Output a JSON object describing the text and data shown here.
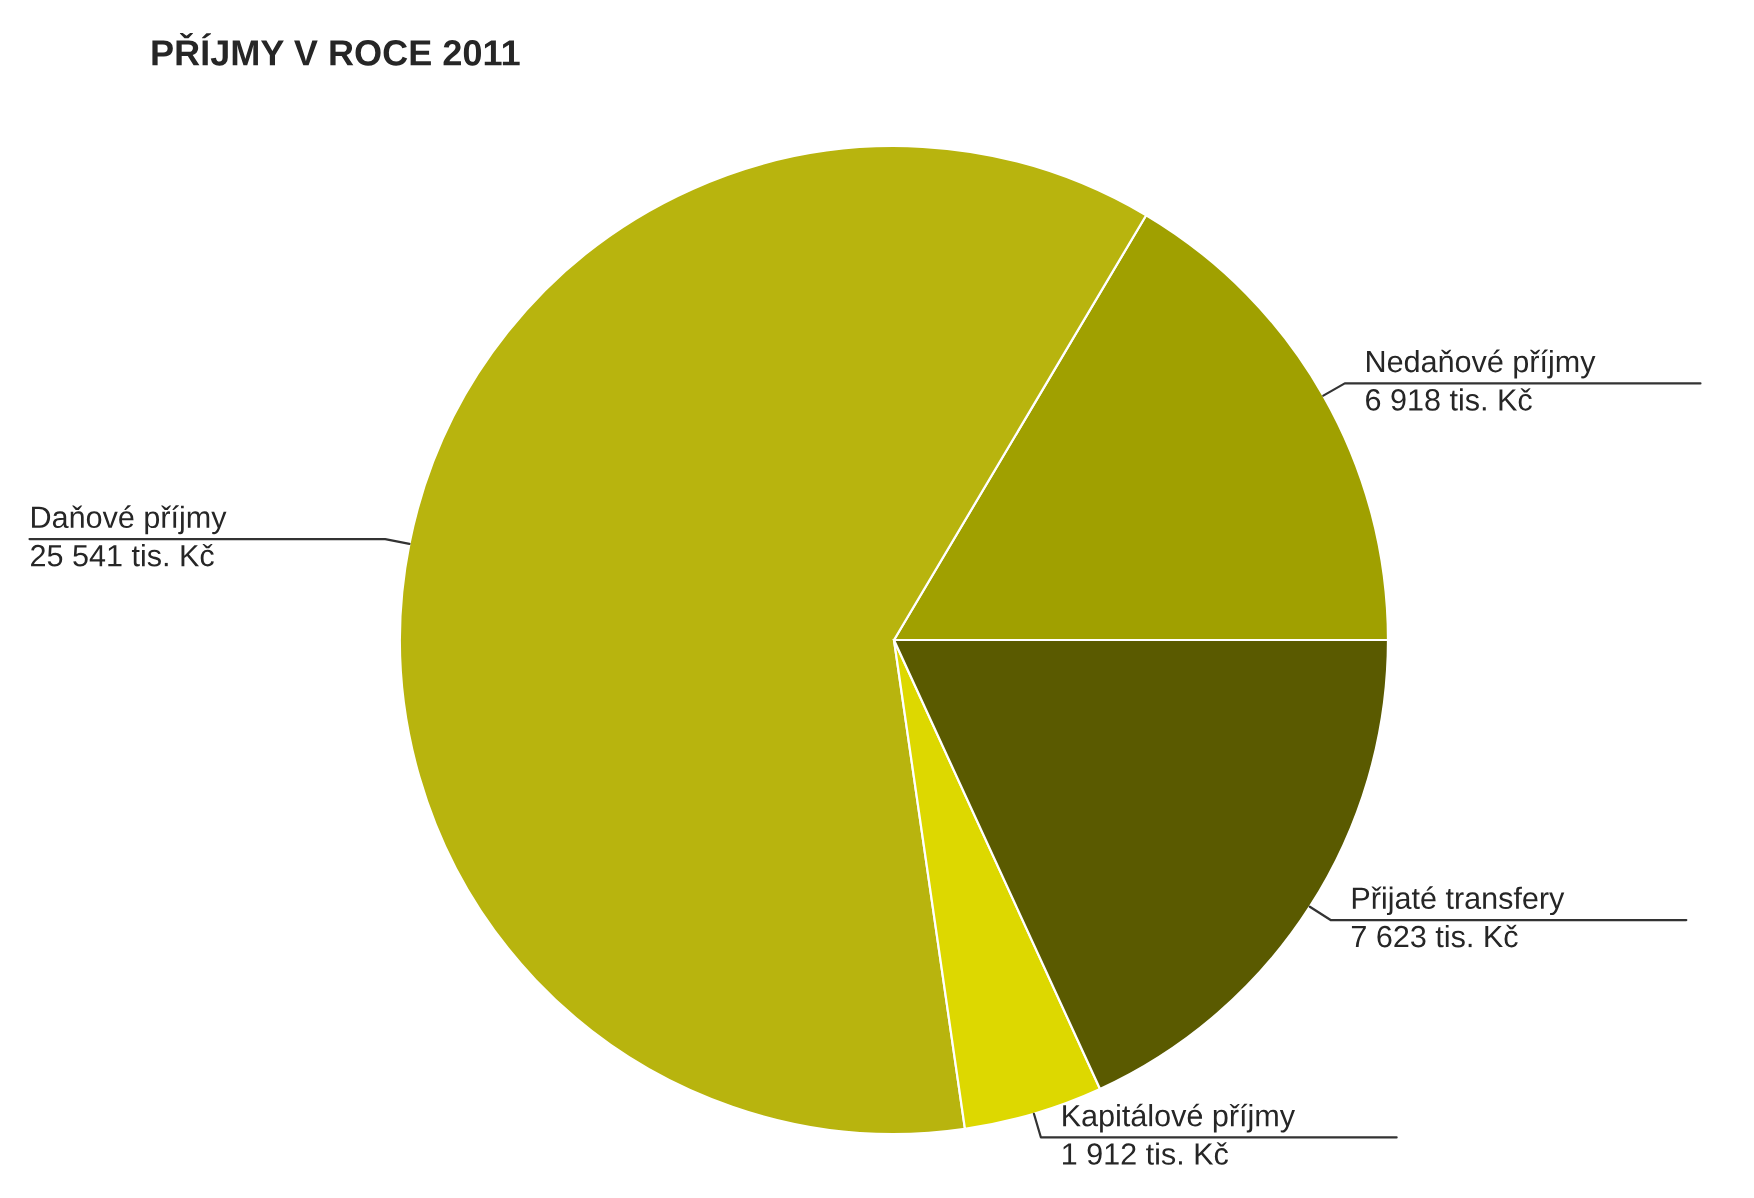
{
  "chart_data": {
    "type": "pie",
    "title": "PŘÍJMY V ROCE 2011",
    "categories": [
      "Nedaňové příjmy",
      "Daňové příjmy",
      "Kapitálové příjmy",
      "Přijaté transfery"
    ],
    "values": [
      6918,
      25541,
      1912,
      7623
    ],
    "value_labels": [
      "6 918 tis. Kč",
      "25 541 tis. Kč",
      "1 912 tis. Kč",
      "7 623 tis. Kč"
    ],
    "colors": [
      "#a0a000",
      "#b8b40e",
      "#ddd800",
      "#5a5a00"
    ]
  }
}
